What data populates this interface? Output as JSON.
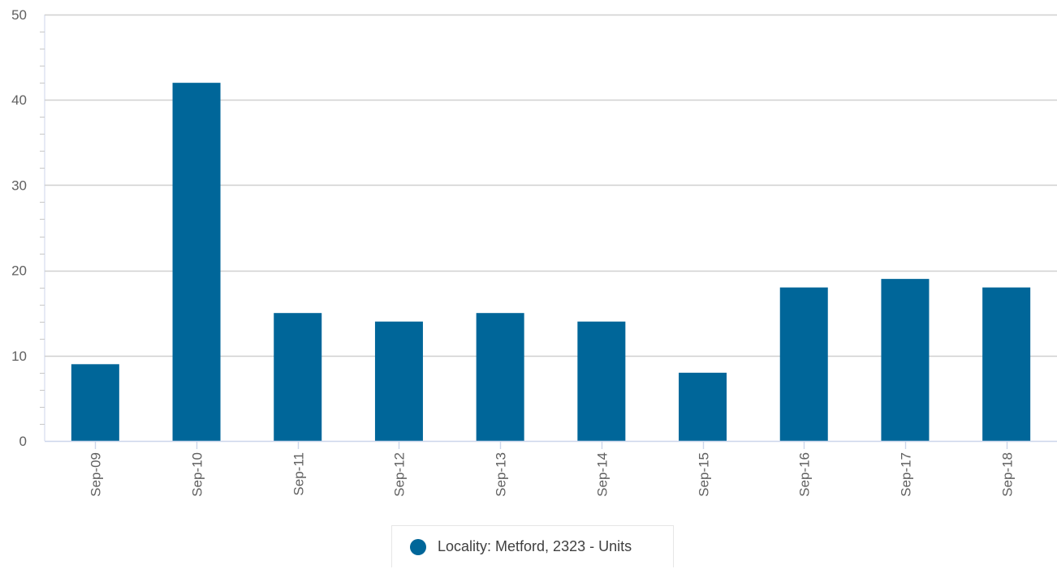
{
  "chart_data": {
    "type": "bar",
    "categories": [
      "Sep-09",
      "Sep-10",
      "Sep-11",
      "Sep-12",
      "Sep-13",
      "Sep-14",
      "Sep-15",
      "Sep-16",
      "Sep-17",
      "Sep-18"
    ],
    "series": [
      {
        "name": "Locality: Metford, 2323 - Units",
        "values": [
          9,
          42,
          15,
          14,
          15,
          14,
          8,
          18,
          19,
          18
        ],
        "color": "#006699"
      }
    ],
    "ylim": [
      0,
      50
    ],
    "yticks": [
      0,
      10,
      20,
      30,
      40,
      50
    ],
    "grid": true,
    "legend_position": "bottom-center"
  },
  "legend": {
    "label": "Locality: Metford, 2323 - Units",
    "color": "#006699"
  }
}
